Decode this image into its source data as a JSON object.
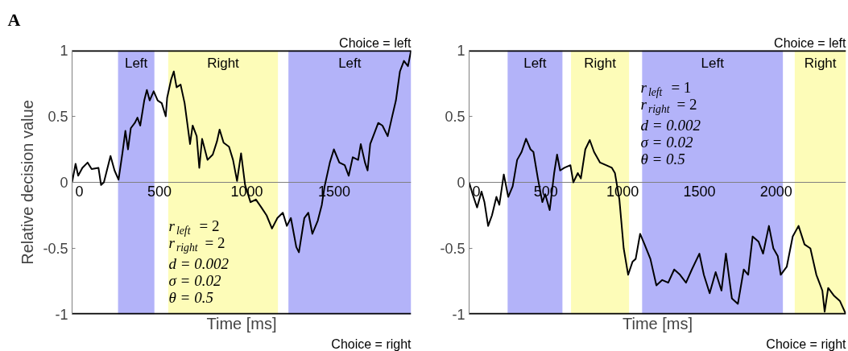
{
  "chart_data": [
    {
      "type": "line",
      "xlabel": "Time [ms]",
      "ylabel": "Relative decision value",
      "xlim": [
        0,
        1940
      ],
      "ylim": [
        -1,
        1
      ],
      "xticks": [
        0,
        500,
        1000,
        1500
      ],
      "yticks": [
        -1,
        -0.5,
        0,
        0.5,
        1
      ],
      "annotations": [
        "A",
        "r$_{left}$ = 2",
        "r$_{right}$ = 2",
        "d = 0.002",
        "σ = 0.02",
        "θ = 0.5"
      ],
      "bands": [
        {
          "axis": "x",
          "from": 263,
          "to": 471,
          "label": "Left",
          "color": "#b3b3f9"
        },
        {
          "axis": "x",
          "from": 550,
          "to": 1178,
          "label": "Right",
          "color": "#fdfcb8"
        },
        {
          "axis": "x",
          "from": 1238,
          "to": 1940,
          "label": "Left",
          "color": "#b3b3f9"
        }
      ],
      "ref_lines": [
        {
          "axis": "y",
          "value": 1,
          "label": "Choice = left",
          "color": "#000000"
        },
        {
          "axis": "y",
          "value": -1,
          "label": "Choice = right",
          "color": "#000000"
        }
      ],
      "series": [
        {
          "color": "#000000",
          "x": [
            0,
            20,
            35,
            59,
            89,
            112,
            151,
            166,
            182,
            220,
            243,
            266,
            289,
            305,
            320,
            336,
            359,
            374,
            390,
            413,
            428,
            444,
            467,
            490,
            513,
            536,
            544,
            567,
            582,
            598,
            621,
            644,
            675,
            690,
            713,
            728,
            744,
            775,
            805,
            829,
            844,
            867,
            898,
            921,
            944,
            967,
            990,
            1021,
            1052,
            1083,
            1113,
            1144,
            1175,
            1206,
            1229,
            1252,
            1283,
            1298,
            1329,
            1352,
            1375,
            1406,
            1429,
            1445,
            1475,
            1498,
            1529,
            1560,
            1583,
            1606,
            1637,
            1652,
            1676,
            1691,
            1706,
            1729,
            1752,
            1776,
            1806,
            1830,
            1853,
            1876,
            1899,
            1922,
            1940
          ],
          "values": [
            0,
            0.14,
            0.05,
            0.11,
            0.15,
            0.1,
            0.11,
            -0.02,
            0,
            0.2,
            0.09,
            0.02,
            0.23,
            0.39,
            0.25,
            0.41,
            0.45,
            0.49,
            0.43,
            0.62,
            0.7,
            0.62,
            0.69,
            0.62,
            0.6,
            0.5,
            0.64,
            0.78,
            0.84,
            0.72,
            0.74,
            0.6,
            0.29,
            0.43,
            0.35,
            0.11,
            0.33,
            0.17,
            0.21,
            0.31,
            0.4,
            0.3,
            0.27,
            0.17,
            0.01,
            0.22,
            -0.02,
            -0.15,
            -0.13,
            -0.19,
            -0.25,
            -0.35,
            -0.27,
            -0.23,
            -0.33,
            -0.27,
            -0.49,
            -0.53,
            -0.27,
            -0.23,
            -0.39,
            -0.29,
            -0.17,
            -0.03,
            0.15,
            0.25,
            0.15,
            0.13,
            0.05,
            0.19,
            0.17,
            0.29,
            0.15,
            0.09,
            0.29,
            0.37,
            0.45,
            0.43,
            0.35,
            0.49,
            0.62,
            0.84,
            0.92,
            0.88,
            1.0
          ]
        }
      ]
    },
    {
      "type": "line",
      "xlabel": "Time [ms]",
      "xlim": [
        0,
        2455
      ],
      "ylim": [
        -1,
        1
      ],
      "xticks": [
        0,
        500,
        1000,
        1500,
        2000
      ],
      "yticks": [
        -1,
        -0.5,
        0,
        0.5,
        1
      ],
      "annotations": [
        "r$_{left}$ = 1",
        "r$_{right}$ = 2",
        "d = 0.002",
        "σ = 0.02",
        "θ = 0.5"
      ],
      "bands": [
        {
          "axis": "x",
          "from": 251,
          "to": 608,
          "label": "Left",
          "color": "#b3b3f9"
        },
        {
          "axis": "x",
          "from": 664,
          "to": 1042,
          "label": "Right",
          "color": "#fdfcb8"
        },
        {
          "axis": "x",
          "from": 1127,
          "to": 2044,
          "label": "Left",
          "color": "#b3b3f9"
        },
        {
          "axis": "x",
          "from": 2121,
          "to": 2455,
          "label": "Right",
          "color": "#fdfcb8"
        }
      ],
      "ref_lines": [
        {
          "axis": "y",
          "value": 1,
          "label": "Choice = left",
          "color": "#000000"
        },
        {
          "axis": "y",
          "value": -1,
          "label": "Choice = right",
          "color": "#000000"
        }
      ],
      "series": [
        {
          "color": "#000000",
          "x": [
            0,
            23,
            52,
            81,
            100,
            124,
            149,
            178,
            197,
            226,
            255,
            284,
            313,
            342,
            371,
            400,
            419,
            448,
            477,
            496,
            525,
            554,
            573,
            593,
            621,
            660,
            679,
            708,
            728,
            757,
            786,
            814,
            853,
            892,
            930,
            950,
            979,
            1007,
            1036,
            1065,
            1085,
            1114,
            1143,
            1181,
            1220,
            1258,
            1297,
            1336,
            1374,
            1413,
            1451,
            1500,
            1529,
            1567,
            1606,
            1644,
            1673,
            1712,
            1751,
            1789,
            1818,
            1847,
            1886,
            1915,
            1953,
            1982,
            2011,
            2030,
            2069,
            2108,
            2146,
            2185,
            2223,
            2262,
            2301,
            2316,
            2339,
            2378,
            2416,
            2451
          ],
          "values": [
            0,
            -0.09,
            -0.19,
            -0.07,
            -0.15,
            -0.33,
            -0.25,
            -0.11,
            -0.17,
            0.06,
            -0.11,
            -0.03,
            0.17,
            0.23,
            0.33,
            0.25,
            0.23,
            0.03,
            -0.15,
            -0.09,
            -0.21,
            0.07,
            0.21,
            0.09,
            0.11,
            0.13,
            0,
            0.07,
            0.03,
            0.25,
            0.32,
            0.23,
            0.15,
            0.13,
            0.11,
            0.07,
            -0.13,
            -0.5,
            -0.7,
            -0.6,
            -0.58,
            -0.39,
            -0.47,
            -0.58,
            -0.78,
            -0.74,
            -0.76,
            -0.66,
            -0.7,
            -0.76,
            -0.66,
            -0.54,
            -0.7,
            -0.84,
            -0.68,
            -0.82,
            -0.54,
            -0.88,
            -0.92,
            -0.66,
            -0.7,
            -0.41,
            -0.45,
            -0.54,
            -0.33,
            -0.5,
            -0.56,
            -0.7,
            -0.64,
            -0.41,
            -0.33,
            -0.47,
            -0.5,
            -0.7,
            -0.82,
            -0.98,
            -0.8,
            -0.86,
            -0.9,
            -0.99
          ]
        }
      ]
    }
  ]
}
